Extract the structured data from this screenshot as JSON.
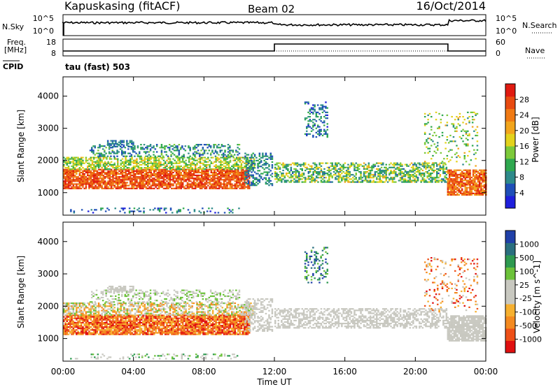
{
  "header": {
    "station": "Kapuskasing (fitACF)",
    "beam": "Beam 02",
    "date": "16/Oct/2014"
  },
  "noise_panel": {
    "left_label": "N.Sky",
    "right_label": "N.Search",
    "left_ticks": [
      "10^5",
      "10^0"
    ],
    "right_ticks": [
      "10^5",
      "10^0"
    ]
  },
  "freq_panel": {
    "left_label_1": "Freq.",
    "left_label_2": "[MHz]",
    "right_label": "Nave",
    "left_ticks": [
      "18",
      "8"
    ],
    "right_ticks": [
      "60",
      "0"
    ],
    "cpid_label": "CPID",
    "cpid_value": "tau (fast) 503"
  },
  "colors": {
    "trace": "#000000",
    "power_scale": [
      "#1f1fdc",
      "#1f4fb8",
      "#2e8a8a",
      "#2fa84f",
      "#7cc93a",
      "#e3d21c",
      "#f2a51c",
      "#f07a14",
      "#e84a10",
      "#e01a10"
    ],
    "velocity_scale": [
      "#e01010",
      "#ee5018",
      "#f48a20",
      "#f6b030",
      "#c8c8c0",
      "#c8c8c0",
      "#6cc23a",
      "#2e9a50",
      "#2a6f7f",
      "#2040a8"
    ]
  },
  "chart_data": [
    {
      "type": "heatmap",
      "name": "Power",
      "ylabel": "Slant Range [km]",
      "yticks": [
        1000,
        2000,
        3000,
        4000
      ],
      "ylim": [
        300,
        4600
      ],
      "colorbar_label": "Power [dB]",
      "colorbar_ticks": [
        4,
        8,
        12,
        16,
        20,
        24,
        28
      ],
      "colorbar_range": [
        0,
        32
      ]
    },
    {
      "type": "heatmap",
      "name": "Velocity",
      "ylabel": "Slant Range [km]",
      "yticks": [
        1000,
        2000,
        3000,
        4000
      ],
      "ylim": [
        300,
        4600
      ],
      "colorbar_label": "Velocity [m s^-1]",
      "colorbar_ticks": [
        1000,
        500,
        100,
        25,
        -25,
        -100,
        -500,
        -1000
      ]
    }
  ],
  "time_axis": {
    "label": "Time UT",
    "ticks": [
      "00:00",
      "04:00",
      "08:00",
      "12:00",
      "16:00",
      "20:00",
      "00:00"
    ],
    "range_hours": [
      0,
      24
    ]
  }
}
